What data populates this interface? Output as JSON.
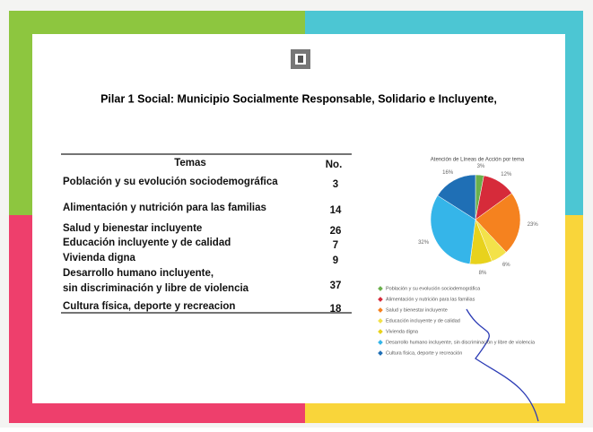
{
  "title": "Pilar 1 Social: Municipio Socialmente Responsable, Solidario e Incluyente,",
  "table": {
    "header": [
      "Temas",
      "No."
    ],
    "rows": [
      [
        "Población y su evolución sociodemográfica",
        3
      ],
      [
        "Alimentación y nutrición para las familias",
        14
      ],
      [
        "Salud y bienestar incluyente",
        26
      ],
      [
        "Educación incluyente y de calidad",
        7
      ],
      [
        "Vivienda digna",
        9
      ],
      [
        "Desarrollo humano incluyente, sin discriminación y libre de violencia",
        37
      ],
      [
        "Cultura física, deporte y recreacion",
        18
      ]
    ]
  },
  "chart_data": {
    "type": "pie",
    "title": "Atención de Líneas de Acción por tema",
    "categories": [
      "Población y su evolución sociodemográfica",
      "Alimentación y nutrición para las familias",
      "Salud y bienestar incluyente",
      "Educación incluyente y de calidad",
      "Vivienda digna",
      "Desarrollo humano incluyente, sin discriminación y libre de violencia",
      "Cultura física, deporte y recreación"
    ],
    "values": [
      3,
      12,
      23,
      6,
      8,
      32,
      16
    ],
    "value_labels": [
      "3%",
      "12%",
      "23%",
      "6%",
      "8%",
      "32%",
      "16%"
    ],
    "colors": [
      "#6ab04c",
      "#d62b3a",
      "#f5821f",
      "#f3e24a",
      "#e8d21c",
      "#35b5e9",
      "#1f6fb5"
    ]
  }
}
